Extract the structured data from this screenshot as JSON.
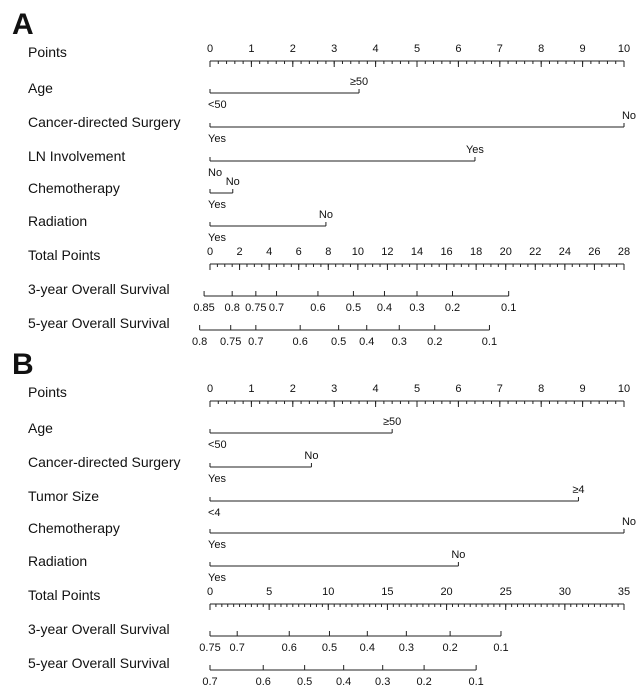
{
  "chart_data": [
    {
      "type": "nomogram",
      "panel": "A",
      "rows": [
        {
          "label": "Points",
          "kind": "scale",
          "min": 0,
          "max": 10,
          "ticks": [
            0,
            1,
            2,
            3,
            4,
            5,
            6,
            7,
            8,
            9,
            10
          ],
          "tick_labels": [
            "0",
            "1",
            "2",
            "3",
            "4",
            "5",
            "6",
            "7",
            "8",
            "9",
            "10"
          ]
        },
        {
          "label": "Age",
          "kind": "factor",
          "levels": [
            {
              "name": "<50",
              "points": 0
            },
            {
              "name": "≥50",
              "points": 3.6
            }
          ]
        },
        {
          "label": "Cancer-directed Surgery",
          "kind": "factor",
          "levels": [
            {
              "name": "Yes",
              "points": 0
            },
            {
              "name": "No",
              "points": 10
            }
          ]
        },
        {
          "label": "LN Involvement",
          "kind": "factor",
          "levels": [
            {
              "name": "No",
              "points": 0
            },
            {
              "name": "Yes",
              "points": 6.4
            }
          ]
        },
        {
          "label": "Chemotherapy",
          "kind": "factor",
          "levels": [
            {
              "name": "Yes",
              "points": 0
            },
            {
              "name": "No",
              "points": 0.55
            }
          ]
        },
        {
          "label": "Radiation",
          "kind": "factor",
          "levels": [
            {
              "name": "Yes",
              "points": 0
            },
            {
              "name": "No",
              "points": 2.8
            }
          ]
        },
        {
          "label": "Total Points",
          "kind": "scale",
          "min": 0,
          "max": 28,
          "ticks": [
            0,
            2,
            4,
            6,
            8,
            10,
            12,
            14,
            16,
            18,
            20,
            22,
            24,
            26,
            28
          ],
          "tick_labels": [
            "0",
            "2",
            "4",
            "6",
            "8",
            "10",
            "12",
            "14",
            "16",
            "18",
            "20",
            "22",
            "24",
            "26",
            "28"
          ]
        },
        {
          "label": "3-year Overall Survival",
          "kind": "probability",
          "ticks": [
            {
              "value": "0.85",
              "total": -0.4
            },
            {
              "value": "0.8",
              "total": 1.5
            },
            {
              "value": "0.75",
              "total": 3.1
            },
            {
              "value": "0.7",
              "total": 4.5
            },
            {
              "value": "0.6",
              "total": 7.3
            },
            {
              "value": "0.5",
              "total": 9.7
            },
            {
              "value": "0.4",
              "total": 11.8
            },
            {
              "value": "0.3",
              "total": 14.0
            },
            {
              "value": "0.2",
              "total": 16.4
            },
            {
              "value": "0.1",
              "total": 20.2
            }
          ]
        },
        {
          "label": "5-year Overall Survival",
          "kind": "probability",
          "ticks": [
            {
              "value": "0.8",
              "total": -0.7
            },
            {
              "value": "0.75",
              "total": 1.4
            },
            {
              "value": "0.7",
              "total": 3.1
            },
            {
              "value": "0.6",
              "total": 6.1
            },
            {
              "value": "0.5",
              "total": 8.7
            },
            {
              "value": "0.4",
              "total": 10.6
            },
            {
              "value": "0.3",
              "total": 12.8
            },
            {
              "value": "0.2",
              "total": 15.2
            },
            {
              "value": "0.1",
              "total": 18.9
            }
          ]
        }
      ]
    },
    {
      "type": "nomogram",
      "panel": "B",
      "rows": [
        {
          "label": "Points",
          "kind": "scale",
          "min": 0,
          "max": 10,
          "ticks": [
            0,
            1,
            2,
            3,
            4,
            5,
            6,
            7,
            8,
            9,
            10
          ],
          "tick_labels": [
            "0",
            "1",
            "2",
            "3",
            "4",
            "5",
            "6",
            "7",
            "8",
            "9",
            "10"
          ]
        },
        {
          "label": "Age",
          "kind": "factor",
          "levels": [
            {
              "name": "<50",
              "points": 0
            },
            {
              "name": "≥50",
              "points": 4.4
            }
          ]
        },
        {
          "label": "Cancer-directed Surgery",
          "kind": "factor",
          "levels": [
            {
              "name": "Yes",
              "points": 0
            },
            {
              "name": "No",
              "points": 2.45
            }
          ]
        },
        {
          "label": "Tumor Size",
          "kind": "factor",
          "levels": [
            {
              "name": "<4",
              "points": 0
            },
            {
              "name": "≥4",
              "points": 8.9
            }
          ]
        },
        {
          "label": "Chemotherapy",
          "kind": "factor",
          "levels": [
            {
              "name": "Yes",
              "points": 0
            },
            {
              "name": "No",
              "points": 10
            }
          ]
        },
        {
          "label": "Radiation",
          "kind": "factor",
          "levels": [
            {
              "name": "Yes",
              "points": 0
            },
            {
              "name": "No",
              "points": 6.0
            }
          ]
        },
        {
          "label": "Total Points",
          "kind": "scale",
          "min": 0,
          "max": 35,
          "ticks": [
            0,
            5,
            10,
            15,
            20,
            25,
            30,
            35
          ],
          "tick_labels": [
            "0",
            "5",
            "10",
            "15",
            "20",
            "25",
            "30",
            "35"
          ]
        },
        {
          "label": "3-year Overall Survival",
          "kind": "probability",
          "ticks": [
            {
              "value": "0.75",
              "total": 0
            },
            {
              "value": "0.7",
              "total": 2.3
            },
            {
              "value": "0.6",
              "total": 6.7
            },
            {
              "value": "0.5",
              "total": 10.1
            },
            {
              "value": "0.4",
              "total": 13.3
            },
            {
              "value": "0.3",
              "total": 16.6
            },
            {
              "value": "0.2",
              "total": 20.3
            },
            {
              "value": "0.1",
              "total": 24.6
            }
          ]
        },
        {
          "label": "5-year Overall Survival",
          "kind": "probability",
          "ticks": [
            {
              "value": "0.7",
              "total": 0
            },
            {
              "value": "0.6",
              "total": 4.5
            },
            {
              "value": "0.5",
              "total": 8.0
            },
            {
              "value": "0.4",
              "total": 11.3
            },
            {
              "value": "0.3",
              "total": 14.6
            },
            {
              "value": "0.2",
              "total": 18.1
            },
            {
              "value": "0.1",
              "total": 22.5
            }
          ]
        }
      ]
    }
  ]
}
